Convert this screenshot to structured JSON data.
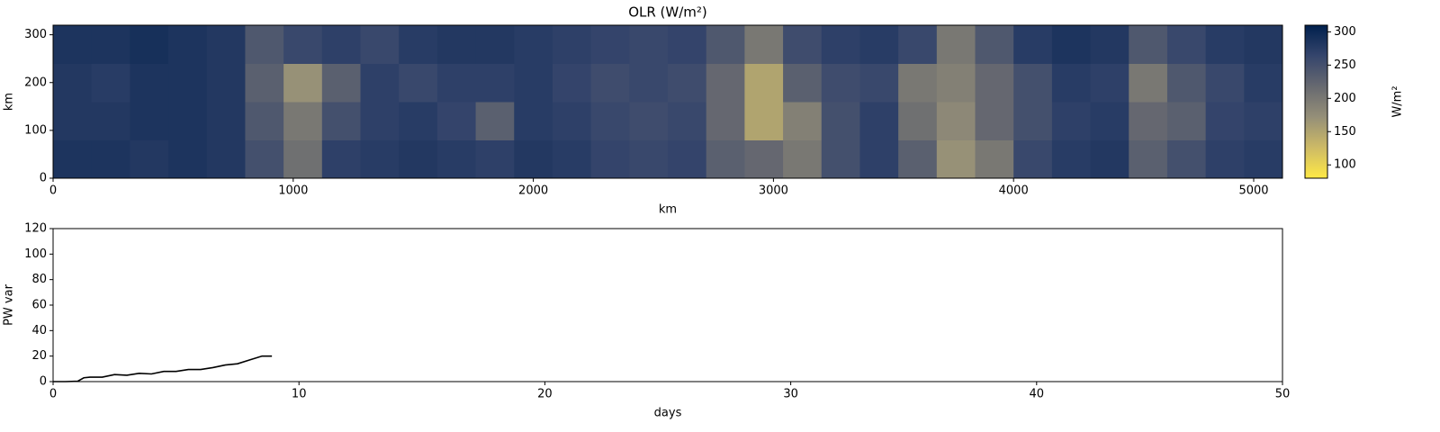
{
  "chart_data": [
    {
      "type": "heatmap",
      "title": "OLR (W/m²)",
      "xlabel": "km",
      "ylabel": "km",
      "xlim": [
        0,
        5120
      ],
      "ylim": [
        0,
        320
      ],
      "xticks": [
        0,
        1000,
        2000,
        3000,
        4000,
        5000
      ],
      "yticks": [
        0,
        100,
        200,
        300
      ],
      "z": [
        [
          285,
          285,
          280,
          285,
          280,
          250,
          210,
          270,
          275,
          280,
          275,
          270,
          280,
          275,
          265,
          260,
          265,
          230,
          220,
          200,
          250,
          270,
          230,
          170,
          200,
          260,
          275,
          280,
          230,
          250,
          270,
          275
        ],
        [
          280,
          280,
          285,
          285,
          280,
          240,
          200,
          250,
          270,
          275,
          265,
          230,
          275,
          270,
          260,
          255,
          260,
          220,
          150,
          190,
          250,
          270,
          210,
          180,
          220,
          250,
          270,
          275,
          220,
          230,
          265,
          270
        ],
        [
          280,
          275,
          285,
          285,
          280,
          230,
          170,
          230,
          270,
          260,
          270,
          270,
          275,
          265,
          255,
          260,
          255,
          220,
          150,
          230,
          255,
          260,
          200,
          190,
          220,
          250,
          275,
          270,
          200,
          240,
          260,
          275
        ],
        [
          285,
          285,
          290,
          285,
          280,
          240,
          260,
          270,
          260,
          275,
          280,
          280,
          275,
          270,
          265,
          260,
          265,
          240,
          200,
          255,
          270,
          275,
          260,
          200,
          240,
          275,
          285,
          280,
          240,
          260,
          275,
          280
        ]
      ],
      "clim": [
        80,
        310
      ],
      "cticks": [
        100,
        150,
        200,
        250,
        300
      ],
      "colorbar_label": "W/m²",
      "colormap": [
        "#ffe945",
        "#cdba66",
        "#958f78",
        "#676970",
        "#35456c",
        "#00204d"
      ]
    },
    {
      "type": "line",
      "xlabel": "days",
      "ylabel": "PW var",
      "xlim": [
        0,
        50
      ],
      "ylim": [
        0,
        120
      ],
      "xticks": [
        0,
        10,
        20,
        30,
        40,
        50
      ],
      "yticks": [
        0,
        20,
        40,
        60,
        80,
        100,
        120
      ],
      "x": [
        0,
        0.5,
        1,
        1.25,
        1.5,
        2,
        2.5,
        3,
        3.5,
        4,
        4.5,
        5,
        5.5,
        6,
        6.5,
        7,
        7.5,
        8,
        8.5,
        8.9
      ],
      "series": [
        {
          "color": "#000000",
          "values": [
            0,
            0,
            0.3,
            3,
            3.5,
            3.5,
            5.5,
            5,
            6.5,
            6,
            8,
            8,
            9.5,
            9.5,
            11,
            13,
            14,
            17,
            20,
            20
          ]
        }
      ]
    }
  ]
}
